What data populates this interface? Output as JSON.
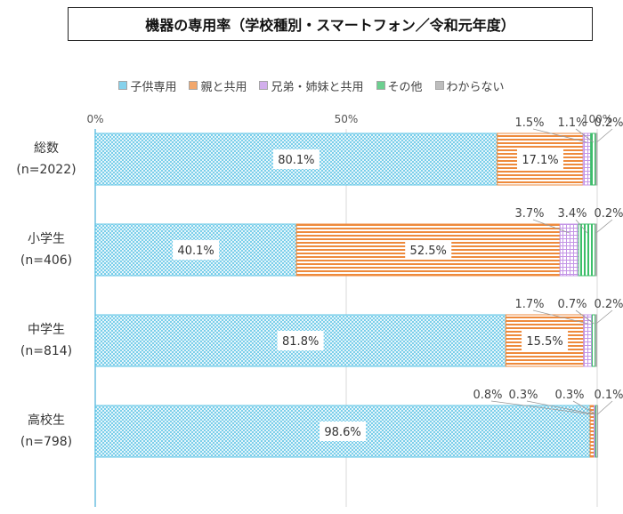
{
  "chart_data": {
    "type": "bar",
    "orientation": "horizontal",
    "stacked": true,
    "title": "機器の専用率（学校種別・スマートフォン／令和元年度）",
    "categories": [
      "総数",
      "小学生",
      "中学生",
      "高校生"
    ],
    "sublabels": [
      "(n=2022)",
      "(n=406)",
      "(n=814)",
      "(n=798)"
    ],
    "x_ticks": [
      "0%",
      "50%",
      "100%"
    ],
    "xlim": [
      0,
      100
    ],
    "legend_position": "top",
    "series": [
      {
        "name": "子供専用",
        "color": "#5ec4e6",
        "values": [
          80.1,
          40.1,
          81.8,
          98.6
        ],
        "labels": [
          "80.1%",
          "40.1%",
          "81.8%",
          "98.6%"
        ]
      },
      {
        "name": "親と共用",
        "color": "#ee8a3c",
        "values": [
          17.1,
          52.5,
          15.5,
          0.8
        ],
        "labels": [
          "17.1%",
          "52.5%",
          "15.5%",
          "0.8%"
        ]
      },
      {
        "name": "兄弟・姉妹と共用",
        "color": "#c495e6",
        "values": [
          1.5,
          3.7,
          1.7,
          0.3
        ],
        "labels": [
          "1.5%",
          "3.7%",
          "1.7%",
          "0.3%"
        ]
      },
      {
        "name": "その他",
        "color": "#3cbf6a",
        "values": [
          1.1,
          3.4,
          0.7,
          0.3
        ],
        "labels": [
          "1.1%",
          "3.4%",
          "0.7%",
          "0.3%"
        ]
      },
      {
        "name": "わからない",
        "color": "#a8a8a8",
        "values": [
          0.2,
          0.2,
          0.2,
          0.1
        ],
        "labels": [
          "0.2%",
          "0.2%",
          "0.2%",
          "0.1%"
        ]
      }
    ]
  }
}
